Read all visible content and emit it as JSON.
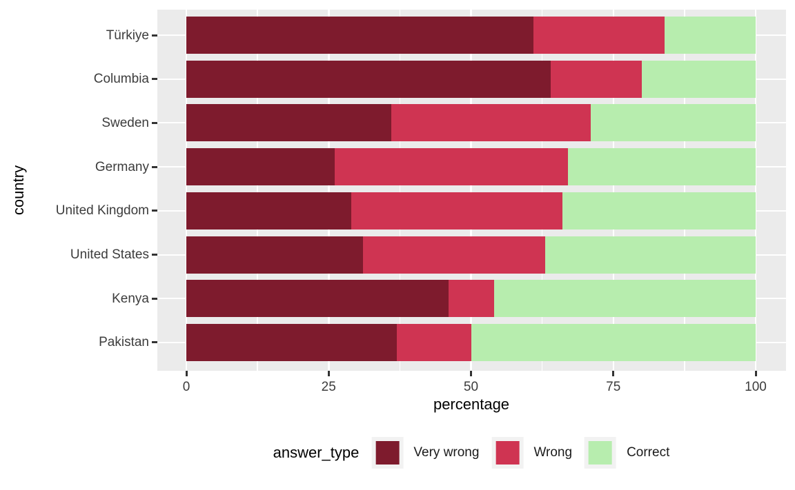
{
  "chart_data": {
    "type": "bar",
    "orientation": "horizontal",
    "stacked": true,
    "xlabel": "percentage",
    "ylabel": "country",
    "xlim": [
      0,
      100
    ],
    "x_ticks": [
      0,
      25,
      50,
      75,
      100
    ],
    "x_minor_ticks": [
      12.5,
      37.5,
      62.5,
      87.5
    ],
    "grid": true,
    "legend_position": "bottom",
    "categories": [
      "Türkiye",
      "Columbia",
      "Sweden",
      "Germany",
      "United Kingdom",
      "United States",
      "Kenya",
      "Pakistan"
    ],
    "series": [
      {
        "name": "Very wrong",
        "color": "#7E1B2D",
        "values": [
          61,
          64,
          36,
          26,
          29,
          31,
          46,
          37
        ]
      },
      {
        "name": "Wrong",
        "color": "#CF3452",
        "values": [
          23,
          16,
          35,
          41,
          37,
          32,
          8,
          13
        ]
      },
      {
        "name": "Correct",
        "color": "#B7EDAE",
        "values": [
          16,
          20,
          29,
          33,
          34,
          37,
          46,
          50
        ]
      }
    ]
  },
  "axes": {
    "x_title": "percentage",
    "y_title": "country",
    "x_tick_labels": [
      "0",
      "25",
      "50",
      "75",
      "100"
    ]
  },
  "legend": {
    "title": "answer_type",
    "items": [
      {
        "label": "Very wrong",
        "color": "#7E1B2D"
      },
      {
        "label": "Wrong",
        "color": "#CF3452"
      },
      {
        "label": "Correct",
        "color": "#B7EDAE"
      }
    ]
  },
  "theme": {
    "panel_bg": "#EBEBEB",
    "grid_color": "#FFFFFF",
    "tick_color": "#333333",
    "tick_label_color": "#3C3C3C",
    "axis_title_color": "#000000",
    "legend_key_bg": "#F2F2F2",
    "background": "#FFFFFF"
  }
}
